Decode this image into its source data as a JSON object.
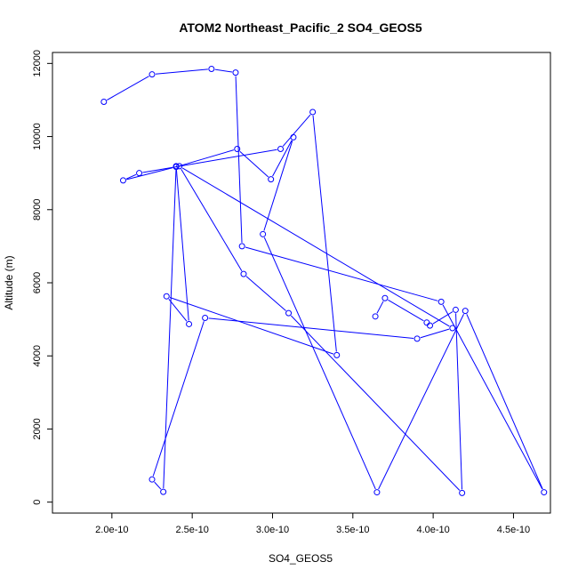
{
  "chart_data": {
    "type": "line",
    "title": "ATOM2 Northeast_Pacific_2 SO4_GEOS5",
    "xlabel": "SO4_GEOS5",
    "ylabel": "Altitude (m)",
    "xlim": [
      1.63e-10,
      4.73e-10
    ],
    "ylim": [
      -300,
      12300
    ],
    "xticks": [
      2e-10,
      2.5e-10,
      3e-10,
      3.5e-10,
      4e-10,
      4.5e-10
    ],
    "xtick_labels": [
      "2.0e-10",
      "2.5e-10",
      "3.0e-10",
      "3.5e-10",
      "4.0e-10",
      "4.5e-10"
    ],
    "yticks": [
      0,
      2000,
      4000,
      6000,
      8000,
      10000,
      12000
    ],
    "ytick_labels": [
      "0",
      "2000",
      "4000",
      "6000",
      "8000",
      "10000",
      "12000"
    ],
    "series_color": "#0000ff",
    "grid": false,
    "series": [
      {
        "x": [
          1.95e-10,
          2.25e-10,
          2.62e-10,
          2.77e-10,
          2.81e-10,
          4.05e-10,
          4.69e-10,
          4.2e-10,
          3.65e-10,
          2.94e-10,
          3.13e-10,
          2.99e-10,
          2.78e-10,
          2.4e-10,
          2.07e-10,
          2.17e-10,
          3.05e-10,
          3.25e-10,
          3.4e-10,
          2.34e-10,
          2.48e-10,
          2.4e-10,
          2.32e-10,
          2.25e-10,
          2.58e-10,
          3.9e-10,
          4.12e-10,
          2.42e-10,
          2.82e-10,
          3.1e-10,
          4.18e-10,
          4.14e-10,
          3.98e-10,
          3.96e-10,
          3.7e-10,
          3.64e-10
        ],
        "y": [
          10950,
          11700,
          11850,
          11750,
          7000,
          5480,
          270,
          5230,
          270,
          7330,
          9980,
          8830,
          9660,
          9170,
          8800,
          9000,
          9660,
          10670,
          4020,
          5630,
          4870,
          9190,
          280,
          620,
          5040,
          4470,
          4760,
          9190,
          6240,
          5170,
          250,
          5260,
          4830,
          4910,
          5580,
          5080
        ]
      }
    ]
  }
}
